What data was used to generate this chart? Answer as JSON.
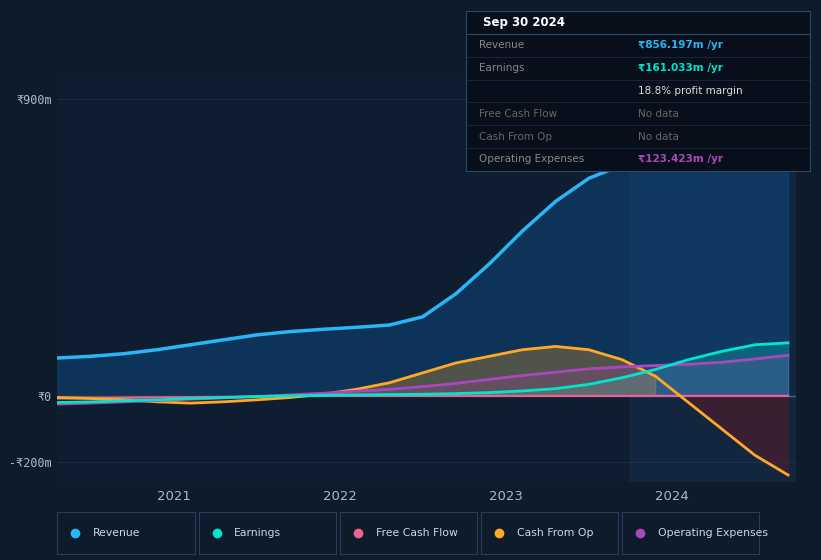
{
  "bg_color": "#0d1b2a",
  "plot_bg_color": "#0e1e30",
  "grid_color": "#1e3a5f",
  "xlim": [
    2020.3,
    2024.75
  ],
  "ylim": [
    -260,
    980
  ],
  "yticks": [
    900,
    0,
    -200
  ],
  "y_labels": [
    "₹900m",
    "₹0",
    "-₹200m"
  ],
  "xticks": [
    2021,
    2022,
    2023,
    2024
  ],
  "revenue_color": "#29b6f6",
  "revenue_fill": "#0d4f8a",
  "earnings_color": "#00e5cc",
  "fcf_color": "#f06292",
  "cash_op_color": "#ffa726",
  "op_exp_color": "#ab47bc",
  "highlight_start": 2023.75,
  "highlight_end": 2024.75,
  "highlight_color": "#1a3a5c",
  "highlight_alpha": 0.35,
  "zero_line_color": "#4a6a7a",
  "legend_items": [
    "Revenue",
    "Earnings",
    "Free Cash Flow",
    "Cash From Op",
    "Operating Expenses"
  ],
  "legend_colors": [
    "#29b6f6",
    "#00e5cc",
    "#f06292",
    "#ffa726",
    "#ab47bc"
  ],
  "info_title": "Sep 30 2024",
  "info_rows": [
    {
      "label": "Revenue",
      "value": "₹856.197m /yr",
      "vc": "#29b6f6",
      "lc": "#888888"
    },
    {
      "label": "Earnings",
      "value": "₹161.033m /yr",
      "vc": "#00e5cc",
      "lc": "#888888"
    },
    {
      "label": "",
      "value": "18.8% profit margin",
      "vc": "#dddddd",
      "lc": "#888888"
    },
    {
      "label": "Free Cash Flow",
      "value": "No data",
      "vc": "#666666",
      "lc": "#666666"
    },
    {
      "label": "Cash From Op",
      "value": "No data",
      "vc": "#666666",
      "lc": "#666666"
    },
    {
      "label": "Operating Expenses",
      "value": "₹123.423m /yr",
      "vc": "#ab47bc",
      "lc": "#888888"
    }
  ],
  "revenue_x": [
    2020.3,
    2020.5,
    2020.7,
    2020.9,
    2021.1,
    2021.3,
    2021.5,
    2021.7,
    2021.9,
    2022.1,
    2022.3,
    2022.5,
    2022.7,
    2022.9,
    2023.1,
    2023.3,
    2023.5,
    2023.7,
    2023.9,
    2024.1,
    2024.3,
    2024.5,
    2024.7
  ],
  "revenue_y": [
    115,
    120,
    128,
    140,
    155,
    170,
    185,
    195,
    202,
    208,
    215,
    240,
    310,
    400,
    500,
    590,
    660,
    700,
    720,
    745,
    780,
    830,
    856
  ],
  "earnings_x": [
    2020.3,
    2020.5,
    2020.7,
    2020.9,
    2021.1,
    2021.3,
    2021.5,
    2021.7,
    2021.9,
    2022.1,
    2022.3,
    2022.5,
    2022.7,
    2022.9,
    2023.1,
    2023.3,
    2023.5,
    2023.7,
    2023.9,
    2024.1,
    2024.3,
    2024.5,
    2024.7
  ],
  "earnings_y": [
    -20,
    -18,
    -15,
    -12,
    -8,
    -5,
    -2,
    0,
    2,
    3,
    4,
    5,
    7,
    10,
    15,
    22,
    35,
    55,
    80,
    110,
    135,
    155,
    161
  ],
  "fcf_x": [
    2020.3,
    2020.5,
    2020.7,
    2020.9,
    2021.1,
    2021.3,
    2021.5,
    2021.7,
    2021.9,
    2022.1,
    2022.3,
    2022.5,
    2022.7,
    2022.9,
    2023.1,
    2023.3,
    2023.5,
    2023.7,
    2023.9,
    2024.1,
    2024.3,
    2024.5,
    2024.7
  ],
  "fcf_y": [
    -8,
    -7,
    -6,
    -5,
    -4,
    -3,
    -2,
    -1,
    0,
    0,
    0,
    0,
    0,
    0,
    0,
    0,
    0,
    0,
    0,
    0,
    0,
    0,
    0
  ],
  "cash_op_x": [
    2020.3,
    2020.5,
    2020.7,
    2020.9,
    2021.1,
    2021.3,
    2021.5,
    2021.7,
    2021.9,
    2022.1,
    2022.3,
    2022.5,
    2022.7,
    2022.9,
    2023.1,
    2023.3,
    2023.5,
    2023.7,
    2023.9,
    2024.1,
    2024.3,
    2024.5,
    2024.7
  ],
  "cash_op_y": [
    -5,
    -8,
    -12,
    -18,
    -22,
    -18,
    -12,
    -5,
    5,
    20,
    40,
    70,
    100,
    120,
    140,
    150,
    140,
    110,
    60,
    -20,
    -100,
    -180,
    -240
  ],
  "op_exp_x": [
    2020.3,
    2020.5,
    2020.7,
    2020.9,
    2021.1,
    2021.3,
    2021.5,
    2021.7,
    2021.9,
    2022.1,
    2022.3,
    2022.5,
    2022.7,
    2022.9,
    2023.1,
    2023.3,
    2023.5,
    2023.7,
    2023.9,
    2024.1,
    2024.3,
    2024.5,
    2024.7
  ],
  "op_exp_y": [
    -25,
    -22,
    -18,
    -14,
    -10,
    -6,
    -2,
    3,
    8,
    14,
    20,
    28,
    38,
    50,
    62,
    72,
    82,
    88,
    92,
    96,
    102,
    112,
    123
  ]
}
